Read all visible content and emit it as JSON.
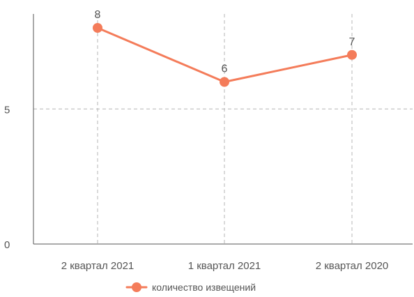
{
  "chart_data": {
    "type": "line",
    "categories": [
      "2 квартал 2021",
      "1 квартал 2021",
      "2 квартал 2020"
    ],
    "series": [
      {
        "name": "количество извещений",
        "values": [
          8,
          6,
          7
        ],
        "color": "#f47c5a"
      }
    ],
    "y_ticks": [
      "0",
      "5"
    ],
    "ylim": [
      0,
      8
    ],
    "grid": true,
    "data_labels": true,
    "legend_position": "bottom-center"
  }
}
